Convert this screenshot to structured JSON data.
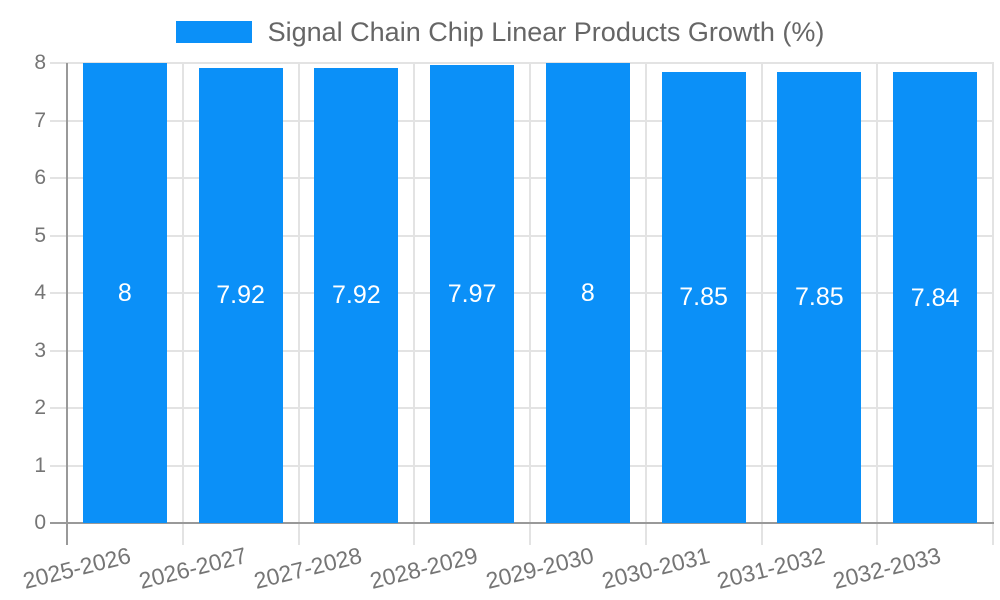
{
  "legend": {
    "label": "Signal Chain Chip Linear Products Growth (%)"
  },
  "chart_data": {
    "type": "bar",
    "title": "Signal Chain Chip Linear Products Growth (%)",
    "series_name": "Signal Chain Chip Linear Products Growth (%)",
    "categories": [
      "2025-2026",
      "2026-2027",
      "2027-2028",
      "2028-2029",
      "2029-2030",
      "2030-2031",
      "2031-2032",
      "2032-2033"
    ],
    "values": [
      8,
      7.92,
      7.92,
      7.97,
      8,
      7.85,
      7.85,
      7.84
    ],
    "value_labels": [
      "8",
      "7.92",
      "7.92",
      "7.97",
      "8",
      "7.85",
      "7.85",
      "7.84"
    ],
    "xlabel": "",
    "ylabel": "",
    "ylim": [
      0,
      8
    ],
    "yticks": [
      0,
      1,
      2,
      3,
      4,
      5,
      6,
      7,
      8
    ],
    "grid": true,
    "legend_position": "top",
    "colors": {
      "bar": "#0b90f8",
      "value_label": "#ffffff",
      "axis": "#999999",
      "grid": "#e3e3e3",
      "tick_label": "#757575",
      "legend_text": "#666666"
    }
  }
}
